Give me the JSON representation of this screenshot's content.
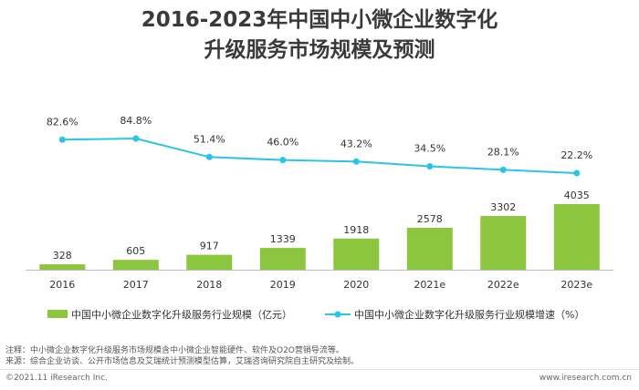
{
  "header": {
    "title_line1": "2016-2023年中国中小微企业数字化",
    "title_line2": "升级服务市场规模及预测"
  },
  "chart_data": {
    "type": "bar",
    "categories": [
      "2016",
      "2017",
      "2018",
      "2019",
      "2020",
      "2021e",
      "2022e",
      "2023e"
    ],
    "series": [
      {
        "name": "中国中小微企业数字化升级服务行业规模（亿元）",
        "type": "bar",
        "values": [
          328,
          605,
          917,
          1339,
          1918,
          2578,
          3302,
          4035
        ],
        "labels": [
          "328",
          "605",
          "917",
          "1339",
          "1918",
          "2578",
          "3302",
          "4035"
        ],
        "color": "#8cc63f"
      },
      {
        "name": "中国中小微企业数字化升级服务行业规模增速（%）",
        "type": "line",
        "values": [
          82.6,
          84.8,
          51.4,
          46.0,
          43.2,
          34.5,
          28.1,
          22.2
        ],
        "labels": [
          "82.6%",
          "84.8%",
          "51.4%",
          "46.0%",
          "43.2%",
          "34.5%",
          "28.1%",
          "22.2%"
        ],
        "color": "#29c4e8"
      }
    ],
    "legend_position": "bottom",
    "grid": false
  },
  "notes": {
    "line1": "注释：中小微企业数字化升级服务市场规模含中小微企业智能硬件、软件及O2O营销导流等。",
    "line2": "来源：综合企业访谈、公开市场信息及艾瑞统计预测模型估算，艾瑞咨询研究院自主研究及绘制。"
  },
  "footer": {
    "copyright": "©2021.11 iResearch Inc.",
    "website": "www.iresearch.com.cn"
  }
}
